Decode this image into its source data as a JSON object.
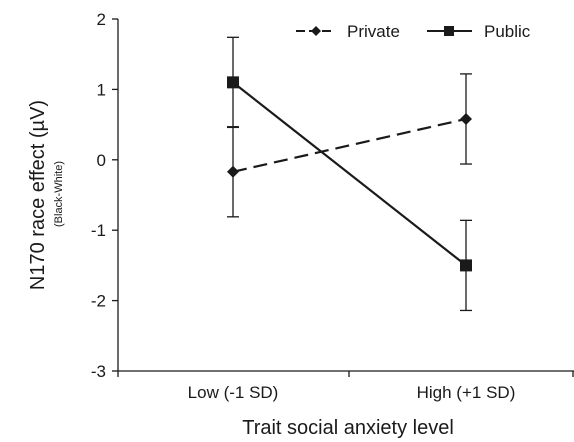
{
  "chart_data": {
    "type": "line",
    "categories": [
      "Low (-1 SD)",
      "High (+1 SD)"
    ],
    "xlabel": "Trait social anxiety level",
    "ylabel": "N170 race effect (µV)",
    "ylabel_sub": "(Black-White)",
    "ylim": [
      -3,
      2
    ],
    "yticks": [
      -3,
      -2,
      -1,
      0,
      1,
      2
    ],
    "ytick_labels": [
      "-3",
      "-2",
      "-1",
      "0",
      "1",
      "2"
    ],
    "grid": false,
    "legend_position": "top-right",
    "series": [
      {
        "name": "Private",
        "values": [
          -0.17,
          0.58
        ],
        "error": [
          0.64,
          0.64
        ],
        "line_style": "dashed",
        "marker": "diamond",
        "color": "#1a1a1a"
      },
      {
        "name": "Public",
        "values": [
          1.1,
          -1.5
        ],
        "error": [
          0.64,
          0.64
        ],
        "line_style": "solid",
        "marker": "square",
        "color": "#1a1a1a"
      }
    ]
  }
}
